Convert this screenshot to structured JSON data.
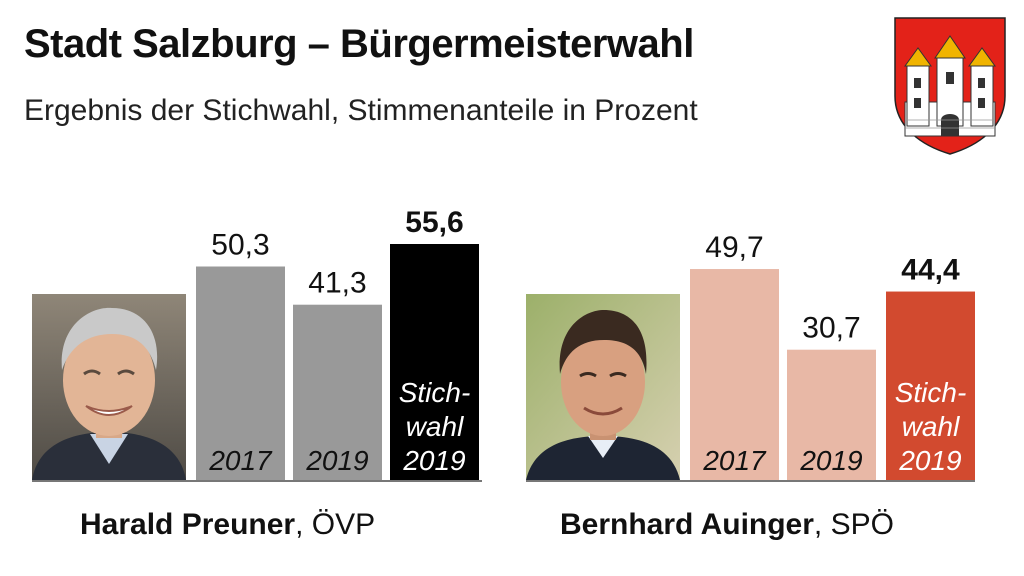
{
  "header": {
    "title": "Stadt Salzburg – Bürgermeisterwahl",
    "subtitle": "Ergebnis der Stichwahl, Stimmenanteile in Prozent"
  },
  "chart_data": [
    {
      "type": "bar",
      "candidate": "Harald Preuner",
      "party": "ÖVP",
      "categories": [
        "2017",
        "2019",
        "Stich-wahl 2019"
      ],
      "category_lines": [
        [
          "2017"
        ],
        [
          "2019"
        ],
        [
          "Stich-",
          "wahl",
          "2019"
        ]
      ],
      "values": [
        50.3,
        41.3,
        55.6
      ],
      "value_labels": [
        "50,3",
        "41,3",
        "55,6"
      ],
      "highlight_index": 2,
      "colors": [
        "#999999",
        "#999999",
        "#000000"
      ],
      "ylim": [
        0,
        60
      ]
    },
    {
      "type": "bar",
      "candidate": "Bernhard Auinger",
      "party": "SPÖ",
      "categories": [
        "2017",
        "2019",
        "Stich-wahl 2019"
      ],
      "category_lines": [
        [
          "2017"
        ],
        [
          "2019"
        ],
        [
          "Stich-",
          "wahl",
          "2019"
        ]
      ],
      "values": [
        49.7,
        30.7,
        44.4
      ],
      "value_labels": [
        "49,7",
        "30,7",
        "44,4"
      ],
      "highlight_index": 2,
      "colors": [
        "#e8b8a6",
        "#e8b8a6",
        "#d24a2f"
      ],
      "ylim": [
        0,
        60
      ]
    }
  ],
  "candidates": [
    {
      "name": "Harald Preuner",
      "party_suffix": ", ÖVP",
      "photo_icon": "portrait-photo-preuner"
    },
    {
      "name": "Bernhard Auinger",
      "party_suffix": ", SPÖ",
      "photo_icon": "portrait-photo-auinger"
    }
  ],
  "emblem": {
    "icon": "salzburg-coat-of-arms-icon",
    "colors": {
      "field": "#e32219",
      "towers": "#ffffff",
      "roofs": "#f0b400"
    }
  }
}
